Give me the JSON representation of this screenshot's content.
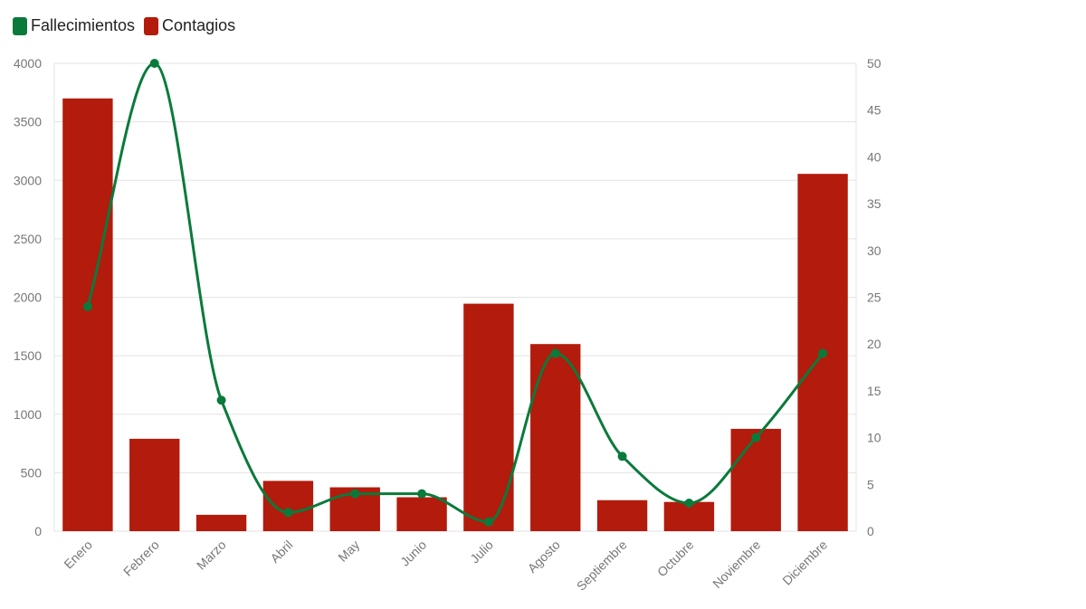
{
  "legend": {
    "items": [
      {
        "label": "Fallecimientos",
        "color": "#0a7a3b"
      },
      {
        "label": "Contagios",
        "color": "#b31b0c"
      }
    ]
  },
  "chart_data": {
    "type": "bar",
    "categories": [
      "Enero",
      "Febrero",
      "Marzo",
      "Abril",
      "May",
      "Junio",
      "Julio",
      "Agosto",
      "Septiembre",
      "Octubre",
      "Noviembre",
      "Diciembre"
    ],
    "series": [
      {
        "name": "Contagios",
        "type": "bar",
        "axis": "left",
        "color": "#b31b0c",
        "values": [
          3700,
          790,
          140,
          430,
          375,
          290,
          1945,
          1600,
          265,
          250,
          875,
          3055
        ]
      },
      {
        "name": "Fallecimientos",
        "type": "line",
        "smooth": true,
        "axis": "right",
        "color": "#0a7a3b",
        "values": [
          24,
          50,
          14,
          2,
          4,
          4,
          1,
          19,
          8,
          3,
          10,
          19
        ]
      }
    ],
    "y_left": {
      "ylim": [
        0,
        4000
      ],
      "ticks": [
        0,
        500,
        1000,
        1500,
        2000,
        2500,
        3000,
        3500,
        4000
      ]
    },
    "y_right": {
      "ylim": [
        0,
        50
      ],
      "ticks": [
        0,
        5,
        10,
        15,
        20,
        25,
        30,
        35,
        40,
        45,
        50
      ]
    },
    "grid": true,
    "legend_position": "top-left",
    "xlabel": "",
    "ylabel": ""
  }
}
